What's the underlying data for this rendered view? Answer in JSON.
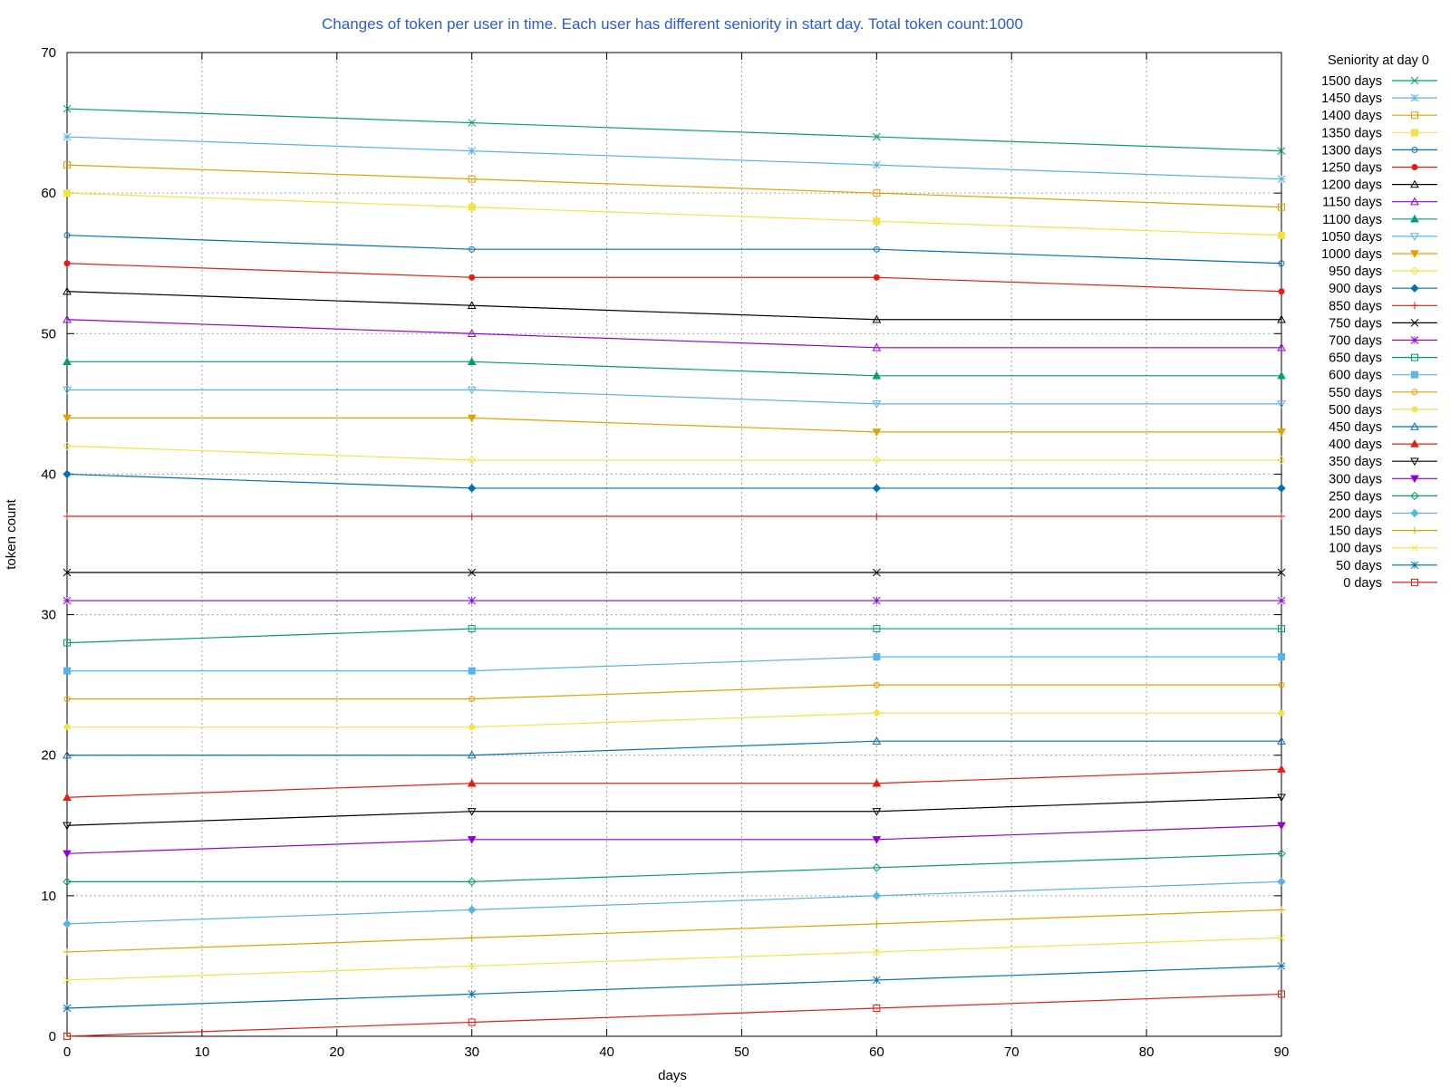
{
  "chart_data": {
    "type": "line",
    "title": "Changes of token per user in time. Each user has different seniority in start day. Total token count:1000",
    "title_color": "#2c5bd8",
    "xlabel": "days",
    "ylabel": "token count",
    "xlim": [
      0,
      90
    ],
    "ylim": [
      0,
      70
    ],
    "xticks": [
      0,
      10,
      20,
      30,
      40,
      50,
      60,
      70,
      80,
      90
    ],
    "yticks": [
      0,
      10,
      20,
      30,
      40,
      50,
      60,
      70
    ],
    "grid": true,
    "legend_title": "Seniority at day 0",
    "legend_position": "right",
    "x": [
      0,
      30,
      60,
      90
    ],
    "series": [
      {
        "name": "1500 days",
        "values": [
          66,
          65,
          64,
          63
        ],
        "color": "#009e73",
        "marker": "cross"
      },
      {
        "name": "1450 days",
        "values": [
          64,
          63,
          62,
          61
        ],
        "color": "#56b4e9",
        "marker": "asterisk"
      },
      {
        "name": "1400 days",
        "values": [
          62,
          61,
          60,
          59
        ],
        "color": "#e69f00",
        "marker": "square-open"
      },
      {
        "name": "1350 days",
        "values": [
          60,
          59,
          58,
          57
        ],
        "color": "#f0e442",
        "marker": "square-filled"
      },
      {
        "name": "1300 days",
        "values": [
          57,
          56,
          56,
          55
        ],
        "color": "#0072b2",
        "marker": "circle-open"
      },
      {
        "name": "1250 days",
        "values": [
          55,
          54,
          54,
          53
        ],
        "color": "#e51e10",
        "marker": "circle-filled"
      },
      {
        "name": "1200 days",
        "values": [
          53,
          52,
          51,
          51
        ],
        "color": "#000000",
        "marker": "triangle-open"
      },
      {
        "name": "1150 days",
        "values": [
          51,
          50,
          49,
          49
        ],
        "color": "#9400d3",
        "marker": "triangle-open"
      },
      {
        "name": "1100 days",
        "values": [
          48,
          48,
          47,
          47
        ],
        "color": "#009e73",
        "marker": "triangle-filled"
      },
      {
        "name": "1050 days",
        "values": [
          46,
          46,
          45,
          45
        ],
        "color": "#56b4e9",
        "marker": "triangle-down-open"
      },
      {
        "name": "1000 days",
        "values": [
          44,
          44,
          43,
          43
        ],
        "color": "#e69f00",
        "marker": "triangle-down-filled"
      },
      {
        "name": "950 days",
        "values": [
          42,
          41,
          41,
          41
        ],
        "color": "#f0e442",
        "marker": "diamond-open"
      },
      {
        "name": "900 days",
        "values": [
          40,
          39,
          39,
          39
        ],
        "color": "#0072b2",
        "marker": "diamond-filled"
      },
      {
        "name": "850 days",
        "values": [
          37,
          37,
          37,
          37
        ],
        "color": "#e51e10",
        "marker": "plus"
      },
      {
        "name": "750 days",
        "values": [
          33,
          33,
          33,
          33
        ],
        "color": "#000000",
        "marker": "cross"
      },
      {
        "name": "700 days",
        "values": [
          31,
          31,
          31,
          31
        ],
        "color": "#9400d3",
        "marker": "asterisk"
      },
      {
        "name": "650 days",
        "values": [
          28,
          29,
          29,
          29
        ],
        "color": "#009e73",
        "marker": "square-open"
      },
      {
        "name": "600 days",
        "values": [
          26,
          26,
          27,
          27
        ],
        "color": "#56b4e9",
        "marker": "square-filled"
      },
      {
        "name": "550 days",
        "values": [
          24,
          24,
          25,
          25
        ],
        "color": "#e69f00",
        "marker": "circle-open"
      },
      {
        "name": "500 days",
        "values": [
          22,
          22,
          23,
          23
        ],
        "color": "#f0e442",
        "marker": "circle-filled"
      },
      {
        "name": "450 days",
        "values": [
          20,
          20,
          21,
          21
        ],
        "color": "#0072b2",
        "marker": "triangle-open"
      },
      {
        "name": "400 days",
        "values": [
          17,
          18,
          18,
          19
        ],
        "color": "#e51e10",
        "marker": "triangle-filled"
      },
      {
        "name": "350 days",
        "values": [
          15,
          16,
          16,
          17
        ],
        "color": "#000000",
        "marker": "triangle-down-open"
      },
      {
        "name": "300 days",
        "values": [
          13,
          14,
          14,
          15
        ],
        "color": "#9400d3",
        "marker": "triangle-down-filled"
      },
      {
        "name": "250 days",
        "values": [
          11,
          11,
          12,
          13
        ],
        "color": "#009e73",
        "marker": "diamond-open"
      },
      {
        "name": "200 days",
        "values": [
          8,
          9,
          10,
          11
        ],
        "color": "#56b4e9",
        "marker": "diamond-filled"
      },
      {
        "name": "150 days",
        "values": [
          6,
          7,
          8,
          9
        ],
        "color": "#e69f00",
        "marker": "plus"
      },
      {
        "name": "100 days",
        "values": [
          4,
          5,
          6,
          7
        ],
        "color": "#f0e442",
        "marker": "cross"
      },
      {
        "name": "50 days",
        "values": [
          2,
          3,
          4,
          5
        ],
        "color": "#0072b2",
        "marker": "asterisk"
      },
      {
        "name": "0 days",
        "values": [
          0,
          1,
          2,
          3
        ],
        "color": "#e51e10",
        "marker": "square-open"
      }
    ]
  }
}
